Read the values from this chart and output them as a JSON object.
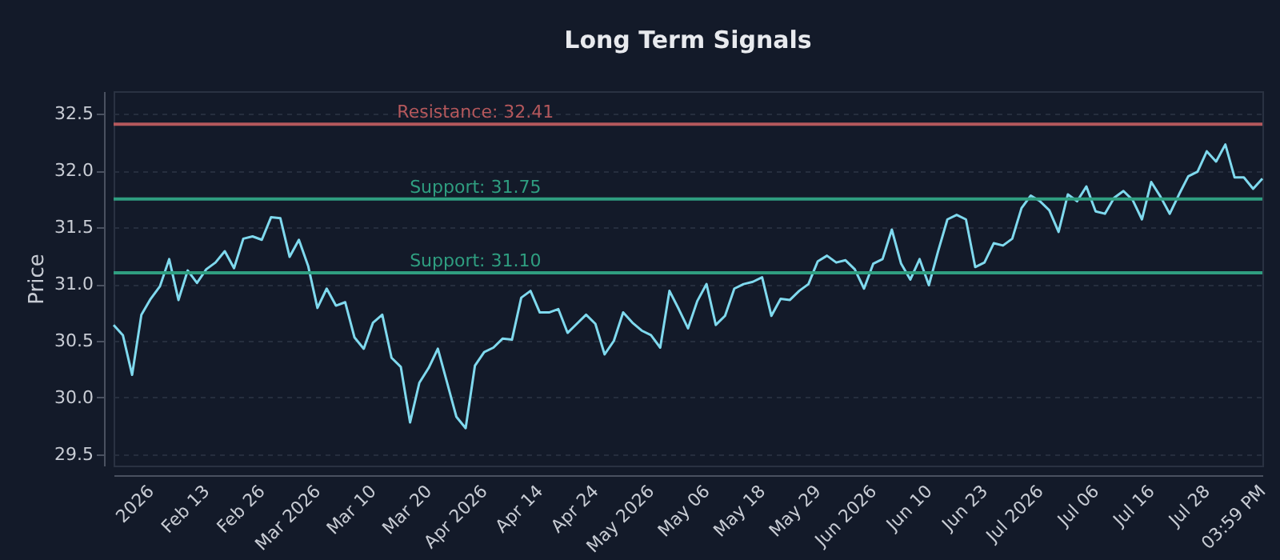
{
  "chart_data": {
    "type": "line",
    "title": "Long Term Signals",
    "ylabel": "Price",
    "categories": [
      null,
      null,
      null,
      null,
      "2026",
      null,
      null,
      null,
      null,
      null,
      "Feb 13",
      null,
      null,
      null,
      null,
      null,
      "Feb 26",
      null,
      null,
      null,
      null,
      null,
      "Mar 2026",
      null,
      null,
      null,
      null,
      null,
      "Mar 10",
      null,
      null,
      null,
      null,
      null,
      "Mar 20",
      null,
      null,
      null,
      null,
      null,
      "Apr 2026",
      null,
      null,
      null,
      null,
      null,
      "Apr 14",
      null,
      null,
      null,
      null,
      null,
      "Apr 24",
      null,
      null,
      null,
      null,
      null,
      "May 2026",
      null,
      null,
      null,
      null,
      null,
      "May 06",
      null,
      null,
      null,
      null,
      null,
      "May 18",
      null,
      null,
      null,
      null,
      null,
      "May 29",
      null,
      null,
      null,
      null,
      null,
      "Jun 2026",
      null,
      null,
      null,
      null,
      null,
      "Jun 10",
      null,
      null,
      null,
      null,
      null,
      "Jun 23",
      null,
      null,
      null,
      null,
      null,
      "Jul 2026",
      null,
      null,
      null,
      null,
      null,
      "Jul 06",
      null,
      null,
      null,
      null,
      null,
      "Jul 16",
      null,
      null,
      null,
      null,
      null,
      "Jul 28",
      null,
      null,
      null,
      null,
      null,
      "03:59 PM"
    ],
    "series": [
      {
        "color": "#7fd9ee",
        "values": [
          30.64,
          30.55,
          30.2,
          30.73,
          30.87,
          30.98,
          31.22,
          30.86,
          31.12,
          31.01,
          31.13,
          31.19,
          31.29,
          31.14,
          31.4,
          31.42,
          31.39,
          31.59,
          31.58,
          31.24,
          31.39,
          31.16,
          30.79,
          30.96,
          30.81,
          30.84,
          30.53,
          30.43,
          30.66,
          30.73,
          30.35,
          30.27,
          29.78,
          30.13,
          30.26,
          30.43,
          30.13,
          29.83,
          29.73,
          30.28,
          30.4,
          30.44,
          30.52,
          30.51,
          30.88,
          30.94,
          30.75,
          30.75,
          30.78,
          30.57,
          30.65,
          30.73,
          30.65,
          30.38,
          30.5,
          30.75,
          30.66,
          30.59,
          30.55,
          30.44,
          30.94,
          30.78,
          30.61,
          30.85,
          31.0,
          30.64,
          30.72,
          30.96,
          31.0,
          31.02,
          31.06,
          30.72,
          30.87,
          30.86,
          30.94,
          31.0,
          31.2,
          31.25,
          31.19,
          31.21,
          31.13,
          30.96,
          31.18,
          31.22,
          31.48,
          31.18,
          31.04,
          31.22,
          30.99,
          31.29,
          31.57,
          31.61,
          31.57,
          31.15,
          31.19,
          31.36,
          31.34,
          31.4,
          31.67,
          31.78,
          31.73,
          31.65,
          31.46,
          31.79,
          31.73,
          31.86,
          31.64,
          31.62,
          31.76,
          31.82,
          31.74,
          31.57,
          31.9,
          31.77,
          31.62,
          31.79,
          31.95,
          31.99,
          32.17,
          32.08,
          32.23,
          31.94,
          31.94,
          31.84,
          31.93
        ]
      }
    ],
    "ylim": [
      29.4,
      32.7
    ],
    "yticks": [
      29.5,
      {
        "value": 30,
        "label": "30.0"
      },
      30.5,
      {
        "value": 31,
        "label": "31.0"
      },
      31.5,
      {
        "value": 32,
        "label": "32.0"
      },
      32.5
    ],
    "grid": "y",
    "ref_lines": [
      {
        "axis": "y",
        "value": 32.41,
        "label": "Resistance: 32.41",
        "color": "#b5585c"
      },
      {
        "axis": "y",
        "value": 31.75,
        "label": "Support: 31.75",
        "color": "#2f9e80"
      },
      {
        "axis": "y",
        "value": 31.1,
        "label": "Support: 31.10",
        "color": "#2f9e80"
      }
    ]
  }
}
